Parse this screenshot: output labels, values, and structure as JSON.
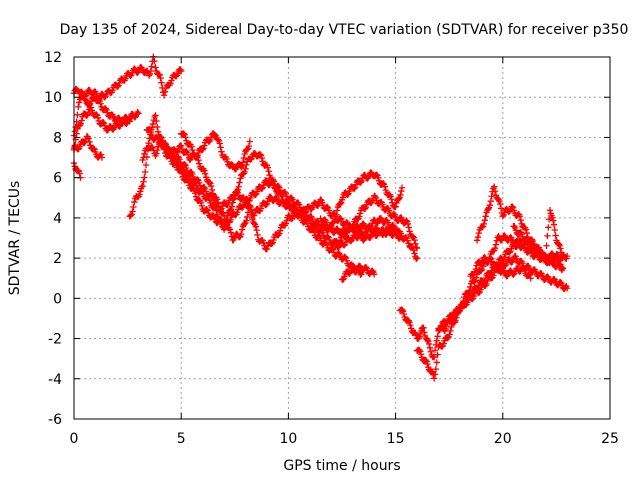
{
  "chart_data": {
    "type": "scatter",
    "title": "Day 135 of 2024, Sidereal Day-to-day VTEC variation (SDTVAR) for receiver p350",
    "xlabel": "GPS time / hours",
    "ylabel": "SDTVAR / TECUs",
    "xlim": [
      0,
      25
    ],
    "ylim": [
      -6,
      12
    ],
    "x_ticks": [
      0,
      5,
      10,
      15,
      20,
      25
    ],
    "y_ticks": [
      -6,
      -4,
      -2,
      0,
      2,
      4,
      6,
      8,
      10,
      12
    ],
    "x_tick_labels": [
      "0",
      "5",
      "10",
      "15",
      "20",
      "25"
    ],
    "y_tick_labels": [
      "-6",
      "-4",
      "-2",
      "0",
      "2",
      "4",
      "6",
      "8",
      "10",
      "12"
    ],
    "grid": true,
    "marker": "+",
    "color": "#ff0000",
    "series": [
      {
        "x": [
          0.0,
          0.2,
          0.4,
          0.8,
          1.2,
          1.6,
          2.0,
          2.4,
          2.8,
          3.2,
          3.5,
          3.7,
          3.8,
          4.0,
          4.2,
          4.5,
          4.8,
          5.0
        ],
        "y": [
          10.2,
          10.4,
          10.1,
          10.3,
          10.0,
          10.2,
          10.6,
          11.0,
          11.3,
          11.4,
          11.1,
          11.9,
          11.5,
          11.0,
          10.2,
          10.8,
          11.2,
          11.3
        ]
      },
      {
        "x": [
          0.0,
          0.2,
          0.4,
          0.6,
          1.0,
          1.4,
          1.8,
          2.2,
          2.6,
          3.0
        ],
        "y": [
          8.0,
          9.5,
          10.2,
          9.6,
          10.0,
          9.4,
          9.0,
          8.8,
          9.0,
          9.2
        ]
      },
      {
        "x": [
          0.0,
          0.2,
          0.4,
          0.8,
          1.2,
          1.6,
          2.0,
          2.4,
          2.6
        ],
        "y": [
          7.5,
          8.5,
          9.0,
          9.4,
          8.8,
          8.4,
          8.6,
          8.8,
          8.8
        ]
      },
      {
        "x": [
          0.0,
          0.3,
          0.6,
          1.0,
          1.3
        ],
        "y": [
          7.4,
          7.6,
          8.0,
          7.2,
          7.0
        ]
      },
      {
        "x": [
          0.0,
          0.15,
          0.3
        ],
        "y": [
          6.7,
          6.4,
          6.0
        ]
      },
      {
        "x": [
          2.6,
          2.9,
          3.2,
          3.4,
          3.6,
          3.8,
          4.0,
          4.3,
          4.6,
          5.0,
          5.5,
          6.0,
          6.5,
          7.0,
          7.5,
          8.0,
          8.5,
          9.0,
          9.5,
          10.0,
          10.5,
          11.0,
          11.5,
          12.0,
          12.5,
          13.0,
          13.5,
          14.0,
          14.5,
          15.0,
          15.3
        ],
        "y": [
          4.0,
          5.0,
          5.5,
          7.0,
          8.5,
          9.0,
          8.0,
          7.5,
          7.0,
          6.2,
          5.5,
          4.5,
          4.0,
          3.6,
          4.2,
          4.8,
          5.3,
          5.8,
          5.5,
          5.0,
          4.6,
          4.0,
          3.6,
          3.4,
          3.3,
          3.5,
          3.6,
          3.4,
          3.3,
          3.2,
          3.0
        ]
      },
      {
        "x": [
          3.2,
          3.5,
          3.8,
          4.1,
          4.4,
          4.8,
          5.2,
          5.6,
          6.0,
          6.4,
          6.8,
          7.2,
          7.6,
          8.0,
          8.4,
          8.8,
          9.2,
          9.6,
          10.0,
          10.4,
          10.8,
          11.2,
          11.6,
          12.0,
          12.4,
          12.8,
          13.2,
          13.6,
          14.0,
          14.4,
          14.8,
          15.2,
          15.6,
          16.0
        ],
        "y": [
          7.0,
          7.6,
          7.2,
          7.8,
          7.4,
          7.0,
          6.5,
          6.0,
          5.5,
          5.0,
          4.5,
          4.8,
          5.2,
          4.8,
          4.2,
          4.6,
          5.0,
          4.8,
          4.6,
          4.3,
          4.0,
          3.6,
          3.2,
          2.8,
          2.6,
          2.9,
          3.1,
          3.3,
          3.8,
          3.9,
          3.6,
          3.2,
          2.8,
          2.0
        ]
      },
      {
        "x": [
          3.4,
          3.7,
          4.0,
          4.3,
          4.6,
          5.0,
          5.4,
          5.8,
          6.2,
          6.6,
          7.0,
          7.4,
          7.8,
          8.2,
          8.6,
          9.0,
          9.4,
          9.8,
          10.2,
          10.6,
          11.0,
          11.4,
          11.8,
          12.2,
          12.6,
          13.0,
          13.4
        ],
        "y": [
          8.5,
          8.0,
          7.8,
          7.2,
          6.8,
          6.5,
          6.0,
          5.4,
          5.0,
          4.4,
          3.5,
          4.8,
          6.0,
          7.0,
          7.2,
          6.5,
          5.5,
          4.8,
          4.5,
          4.0,
          3.5,
          3.0,
          2.6,
          2.2,
          2.0,
          1.5,
          1.2
        ]
      },
      {
        "x": [
          4.0,
          4.5,
          5.0,
          5.4,
          5.8,
          6.2,
          6.6,
          7.0,
          7.4,
          7.8,
          8.2
        ],
        "y": [
          7.8,
          7.2,
          7.5,
          7.0,
          7.2,
          7.8,
          8.2,
          7.0,
          6.5,
          6.6,
          7.8
        ]
      },
      {
        "x": [
          5.0,
          5.4,
          5.8,
          6.2,
          6.6,
          7.0,
          7.4,
          7.8,
          8.2,
          8.6,
          9.0,
          9.5,
          10.0,
          10.5,
          11.0,
          11.5,
          12.0,
          12.5,
          13.0,
          13.5,
          14.0,
          14.5,
          15.0
        ],
        "y": [
          8.3,
          7.6,
          6.8,
          6.0,
          5.0,
          4.0,
          3.0,
          3.2,
          4.5,
          3.0,
          2.5,
          3.2,
          4.0,
          4.2,
          4.5,
          4.8,
          4.2,
          3.8,
          3.5,
          3.0,
          3.2,
          3.3,
          3.5
        ]
      },
      {
        "x": [
          11.5,
          12.0,
          12.5,
          13.0,
          13.5,
          14.0,
          14.5,
          15.0,
          15.3
        ],
        "y": [
          4.0,
          3.5,
          5.0,
          5.5,
          6.0,
          6.2,
          5.5,
          4.5,
          5.5
        ]
      },
      {
        "x": [
          12.0,
          12.5,
          13.0,
          13.5,
          14.0,
          14.5,
          15.0,
          15.5,
          16.0
        ],
        "y": [
          2.5,
          3.0,
          3.6,
          4.5,
          5.0,
          4.5,
          4.0,
          3.8,
          2.5
        ]
      },
      {
        "x": [
          12.5,
          13.0,
          13.5,
          14.0
        ],
        "y": [
          1.0,
          1.5,
          1.5,
          1.2
        ]
      },
      {
        "x": [
          15.2,
          15.5,
          15.8,
          16.0,
          16.3,
          16.6,
          16.8,
          17.0,
          17.3,
          17.6,
          18.0,
          18.4,
          18.8,
          19.2,
          19.6,
          20.0,
          20.4,
          20.8,
          21.2,
          21.6,
          22.0,
          22.4,
          22.8
        ],
        "y": [
          -0.5,
          -1.0,
          -1.6,
          -2.0,
          -1.5,
          -2.5,
          -3.0,
          -1.5,
          -1.5,
          -1.0,
          -0.5,
          0.0,
          0.6,
          1.0,
          1.6,
          2.0,
          2.5,
          2.8,
          2.6,
          2.3,
          2.0,
          1.7,
          1.5
        ]
      },
      {
        "x": [
          16.0,
          16.3,
          16.6,
          16.8,
          17.0,
          17.4,
          17.8,
          18.2,
          18.6,
          19.0,
          19.4,
          19.8,
          20.2,
          20.6,
          21.0,
          21.4,
          21.8,
          22.2,
          22.6,
          23.0
        ],
        "y": [
          -2.5,
          -3.0,
          -3.5,
          -4.0,
          -2.5,
          -2.0,
          -1.0,
          0.0,
          0.8,
          1.5,
          2.0,
          3.0,
          3.0,
          2.8,
          2.5,
          2.2,
          2.0,
          1.8,
          2.0,
          2.1
        ]
      },
      {
        "x": [
          17.0,
          17.5,
          18.0,
          18.5,
          19.0,
          19.4,
          19.8,
          20.2,
          20.6,
          21.0,
          21.5,
          22.0,
          22.5,
          23.0
        ],
        "y": [
          -1.5,
          -1.0,
          -0.5,
          0.0,
          0.5,
          1.0,
          1.5,
          1.8,
          2.0,
          1.6,
          1.3,
          1.0,
          0.8,
          0.5
        ]
      },
      {
        "x": [
          18.8,
          19.2,
          19.6,
          20.0,
          20.4,
          20.8,
          21.2,
          21.6,
          22.0,
          22.5,
          22.8
        ],
        "y": [
          3.0,
          4.0,
          5.5,
          4.2,
          4.5,
          4.0,
          3.0,
          2.5,
          2.0,
          2.2,
          1.5
        ]
      },
      {
        "x": [
          18.5,
          18.9,
          19.3,
          19.7,
          20.1,
          20.5,
          20.9,
          21.3
        ],
        "y": [
          1.0,
          1.8,
          2.0,
          1.6,
          1.2,
          1.3,
          1.5,
          1.0
        ]
      },
      {
        "x": [
          20.5,
          21.0,
          21.5,
          22.0,
          22.2,
          22.5,
          22.8
        ],
        "y": [
          3.5,
          3.0,
          2.5,
          2.0,
          4.5,
          3.0,
          2.0
        ]
      }
    ]
  }
}
